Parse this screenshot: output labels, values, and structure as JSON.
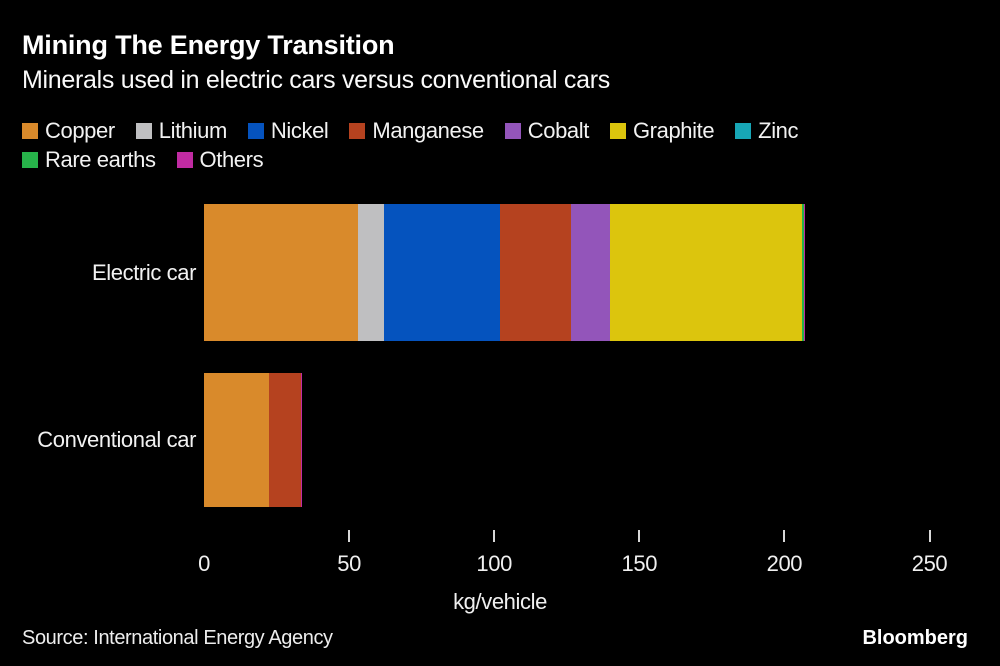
{
  "header": {
    "title": "Mining The Energy Transition",
    "subtitle": "Minerals used in electric cars versus conventional cars"
  },
  "footer": {
    "source": "Source: International Energy Agency",
    "brand": "Bloomberg"
  },
  "colors": {
    "background": "#000000",
    "text": "#F2F2F2",
    "tick": "#D8D8D8"
  },
  "chart_data": {
    "type": "bar",
    "orientation": "horizontal",
    "title": "Mining The Energy Transition",
    "subtitle": "Minerals used in electric cars versus conventional cars",
    "xlabel": "kg/vehicle",
    "xlim": [
      0,
      250
    ],
    "x_ticks": [
      0,
      50,
      100,
      150,
      200,
      250
    ],
    "grid": false,
    "legend_position": "top",
    "legend_wrap_after": 7,
    "categories": [
      "Electric car",
      "Conventional car"
    ],
    "series": [
      {
        "name": "Copper",
        "color": "#D98A2B",
        "values": [
          53.2,
          22.3
        ]
      },
      {
        "name": "Lithium",
        "color": "#BFBFC1",
        "values": [
          8.9,
          0
        ]
      },
      {
        "name": "Nickel",
        "color": "#0553BE",
        "values": [
          39.9,
          0
        ]
      },
      {
        "name": "Manganese",
        "color": "#B5421F",
        "values": [
          24.5,
          11.2
        ]
      },
      {
        "name": "Cobalt",
        "color": "#9355BA",
        "values": [
          13.3,
          0
        ]
      },
      {
        "name": "Graphite",
        "color": "#DCC50D",
        "values": [
          66.3,
          0
        ]
      },
      {
        "name": "Zinc",
        "color": "#17A6B6",
        "values": [
          0.1,
          0.1
        ]
      },
      {
        "name": "Rare earths",
        "color": "#27B34A",
        "values": [
          0.5,
          0
        ]
      },
      {
        "name": "Others",
        "color": "#C02BA2",
        "values": [
          0.3,
          0.3
        ]
      }
    ],
    "totals": {
      "Electric car": 207.0,
      "Conventional car": 33.9
    }
  }
}
